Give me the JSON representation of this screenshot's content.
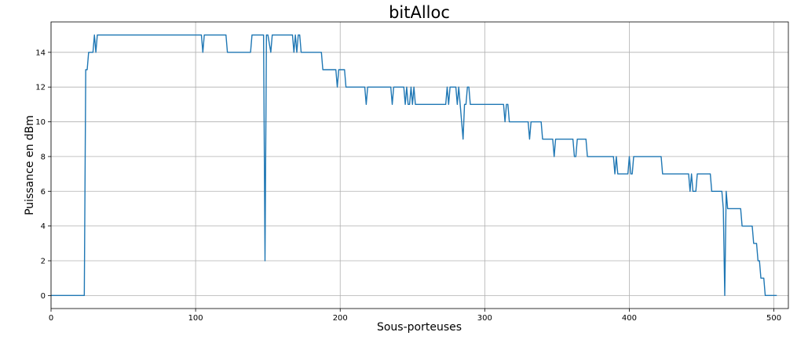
{
  "chart_data": {
    "type": "line",
    "title": "bitAlloc",
    "xlabel": "Sous-porteuses",
    "ylabel": "Puissance en dBm",
    "xlim": [
      0,
      510
    ],
    "ylim": [
      -0.75,
      15.75
    ],
    "xticks": [
      0,
      100,
      200,
      300,
      400,
      500
    ],
    "yticks": [
      0,
      2,
      4,
      6,
      8,
      10,
      12,
      14
    ],
    "grid": true,
    "line_color": "#1f77b4",
    "series": [
      {
        "x": [
          0,
          23,
          24,
          24,
          25,
          26,
          26,
          29,
          30,
          31,
          32,
          104,
          105,
          106,
          121,
          122,
          138,
          139,
          147,
          148,
          149,
          150,
          152,
          153,
          154,
          167,
          168,
          169,
          170,
          171,
          172,
          173,
          174,
          175,
          187,
          188,
          197,
          198,
          199,
          203,
          204,
          217,
          218,
          219,
          235,
          236,
          237,
          244,
          245,
          246,
          247,
          248,
          249,
          250,
          251,
          252,
          253,
          273,
          274,
          275,
          276,
          277,
          280,
          281,
          282,
          285,
          286,
          287,
          288,
          289,
          290,
          313,
          314,
          315,
          316,
          317,
          330,
          331,
          332,
          339,
          340,
          347,
          348,
          349,
          361,
          362,
          363,
          364,
          370,
          371,
          389,
          390,
          391,
          392,
          399,
          400,
          401,
          402,
          403,
          422,
          423,
          441,
          442,
          443,
          444,
          446,
          447,
          456,
          457,
          464,
          465,
          466,
          467,
          468,
          477,
          478,
          485,
          486,
          488,
          489,
          490,
          491,
          493,
          494,
          496,
          502
        ],
        "y": [
          0,
          0,
          13,
          13,
          13,
          14,
          14,
          14,
          15,
          14,
          15,
          15,
          14,
          15,
          15,
          14,
          14,
          15,
          15,
          2,
          15,
          15,
          14,
          15,
          15,
          15,
          14,
          15,
          14,
          15,
          15,
          14,
          14,
          14,
          14,
          13,
          13,
          12,
          13,
          13,
          12,
          12,
          11,
          12,
          12,
          11,
          12,
          12,
          11,
          12,
          11,
          11,
          12,
          11,
          12,
          11,
          11,
          11,
          12,
          11,
          12,
          12,
          12,
          11,
          12,
          9,
          11,
          11,
          12,
          12,
          11,
          11,
          10,
          11,
          11,
          10,
          10,
          9,
          10,
          10,
          9,
          9,
          8,
          9,
          9,
          8,
          8,
          9,
          9,
          8,
          8,
          7,
          8,
          7,
          7,
          8,
          7,
          7,
          8,
          8,
          7,
          7,
          6,
          7,
          6,
          6,
          7,
          7,
          6,
          6,
          5,
          0,
          6,
          5,
          5,
          4,
          4,
          3,
          3,
          2,
          2,
          1,
          1,
          0,
          0,
          0
        ]
      }
    ]
  }
}
